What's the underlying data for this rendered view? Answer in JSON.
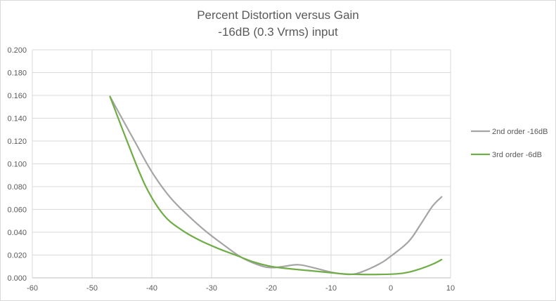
{
  "chart_data": {
    "type": "line",
    "title": "Percent Distortion versus Gain",
    "subtitle": "-16dB (0.3 Vrms) input",
    "xlim": [
      -60,
      10
    ],
    "ylim": [
      0,
      0.2
    ],
    "x_ticks": [
      "-60",
      "-50",
      "-40",
      "-30",
      "-20",
      "-10",
      "0",
      "10"
    ],
    "y_ticks": [
      "0.000",
      "0.020",
      "0.040",
      "0.060",
      "0.080",
      "0.100",
      "0.120",
      "0.140",
      "0.160",
      "0.180",
      "0.200"
    ],
    "grid": "horizontal and vertical major gridlines",
    "legend_position": "right",
    "series": [
      {
        "name": "2nd order -16dB",
        "color": "#a5a5a5",
        "points": [
          [
            -47,
            0.159
          ],
          [
            -43,
            0.121
          ],
          [
            -40,
            0.093
          ],
          [
            -37,
            0.071
          ],
          [
            -34,
            0.055
          ],
          [
            -31,
            0.041
          ],
          [
            -28,
            0.029
          ],
          [
            -25,
            0.018
          ],
          [
            -22,
            0.011
          ],
          [
            -20,
            0.009
          ],
          [
            -18,
            0.01
          ],
          [
            -15.5,
            0.0115
          ],
          [
            -13,
            0.009
          ],
          [
            -10,
            0.005
          ],
          [
            -7,
            0.003
          ],
          [
            -5,
            0.005
          ],
          [
            -2,
            0.012
          ],
          [
            0,
            0.019
          ],
          [
            3,
            0.032
          ],
          [
            5,
            0.047
          ],
          [
            7,
            0.063
          ],
          [
            8.5,
            0.071
          ]
        ]
      },
      {
        "name": "3rd order -6dB",
        "color": "#70ad47",
        "points": [
          [
            -47,
            0.159
          ],
          [
            -44,
            0.118
          ],
          [
            -41,
            0.08
          ],
          [
            -38,
            0.055
          ],
          [
            -35,
            0.042
          ],
          [
            -32,
            0.033
          ],
          [
            -29,
            0.026
          ],
          [
            -26,
            0.02
          ],
          [
            -23,
            0.014
          ],
          [
            -20,
            0.01
          ],
          [
            -17,
            0.008
          ],
          [
            -14,
            0.0065
          ],
          [
            -11,
            0.005
          ],
          [
            -8,
            0.0035
          ],
          [
            -5,
            0.003
          ],
          [
            -2,
            0.003
          ],
          [
            1,
            0.0035
          ],
          [
            3,
            0.005
          ],
          [
            5,
            0.008
          ],
          [
            7,
            0.012
          ],
          [
            8.5,
            0.016
          ]
        ]
      }
    ]
  }
}
